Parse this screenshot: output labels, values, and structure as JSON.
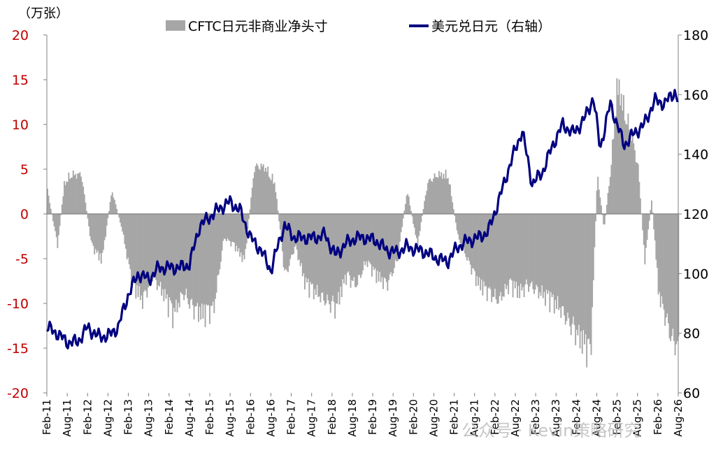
{
  "chart_data": {
    "type": "bar+line",
    "unit_left": "（万张）",
    "left_axis": {
      "ylim": [
        -20,
        20
      ],
      "ticks": [
        "20",
        "15",
        "10",
        "5",
        "0",
        "-5",
        "-10",
        "-15",
        "-20"
      ]
    },
    "right_axis": {
      "ylim": [
        60,
        180
      ],
      "ticks": [
        "180",
        "160",
        "140",
        "120",
        "100",
        "80",
        "60"
      ]
    },
    "x_tick_labels": [
      "Feb-11",
      "Aug-11",
      "Feb-12",
      "Aug-12",
      "Feb-13",
      "Aug-13",
      "Feb-14",
      "Aug-14",
      "Feb-15",
      "Aug-15",
      "Feb-16",
      "Aug-16",
      "Feb-17",
      "Aug-17",
      "Feb-18",
      "Aug-18",
      "Feb-19",
      "Aug-19",
      "Feb-20",
      "Aug-20",
      "Feb-21",
      "Aug-21",
      "Feb-22",
      "Aug-22",
      "Feb-23",
      "Aug-23",
      "Feb-24",
      "Aug-24",
      "Feb-25",
      "Aug-25",
      "Feb-26",
      "Aug-26"
    ],
    "legend": {
      "position": "top"
    },
    "series": [
      {
        "name": "CFTC日元非商业净头寸",
        "kind": "bar",
        "axis": "left",
        "color": "#a6a6a6",
        "dates": [
          "2011-02",
          "2011-05",
          "2011-07",
          "2011-09",
          "2011-12",
          "2012-03",
          "2012-06",
          "2012-09",
          "2012-12",
          "2013-03",
          "2013-06",
          "2013-09",
          "2013-12",
          "2014-03",
          "2014-06",
          "2014-09",
          "2014-12",
          "2015-03",
          "2015-06",
          "2015-09",
          "2015-12",
          "2016-03",
          "2016-06",
          "2016-09",
          "2016-12",
          "2017-03",
          "2017-06",
          "2017-09",
          "2017-12",
          "2018-03",
          "2018-06",
          "2018-09",
          "2018-12",
          "2019-03",
          "2019-06",
          "2019-09",
          "2019-12",
          "2020-03",
          "2020-06",
          "2020-09",
          "2020-12",
          "2021-03",
          "2021-06",
          "2021-09",
          "2021-12",
          "2022-03",
          "2022-06",
          "2022-09",
          "2022-12",
          "2023-03",
          "2023-06",
          "2023-09",
          "2023-12",
          "2024-03",
          "2024-06",
          "2024-08",
          "2024-10",
          "2024-12",
          "2025-02",
          "2025-04",
          "2025-06",
          "2025-08",
          "2025-10",
          "2025-12",
          "2026-02",
          "2026-04",
          "2026-06",
          "2026-08"
        ],
        "values": [
          3,
          -4,
          4,
          5,
          5,
          -4,
          -6,
          3,
          -2,
          -9,
          -11,
          -8,
          -10,
          -13,
          -10,
          -12,
          -13,
          -12,
          -3,
          -4,
          -6,
          6,
          6,
          4,
          -8,
          -4,
          -9,
          -10,
          -11,
          -12,
          -8,
          -9,
          -6,
          -8,
          -9,
          -6,
          3,
          -4,
          4,
          5,
          5,
          -3,
          -6,
          -9,
          -10,
          -11,
          -9,
          -10,
          -9,
          -10,
          -11,
          -12,
          -14,
          -16,
          -18,
          5,
          -2,
          6,
          17,
          13,
          10,
          6,
          -6,
          2,
          -10,
          -13,
          -16,
          -17
        ]
      },
      {
        "name": "美元兑日元（右轴）",
        "kind": "line",
        "axis": "right",
        "color": "#000080",
        "dates": [
          "2011-02",
          "2011-05",
          "2011-08",
          "2011-11",
          "2012-02",
          "2012-05",
          "2012-08",
          "2012-11",
          "2013-02",
          "2013-05",
          "2013-08",
          "2013-11",
          "2014-02",
          "2014-05",
          "2014-08",
          "2014-11",
          "2015-02",
          "2015-05",
          "2015-08",
          "2015-11",
          "2016-02",
          "2016-05",
          "2016-08",
          "2016-11",
          "2016-12",
          "2017-03",
          "2017-06",
          "2017-09",
          "2017-12",
          "2018-03",
          "2018-06",
          "2018-09",
          "2018-12",
          "2019-03",
          "2019-06",
          "2019-09",
          "2019-12",
          "2020-03",
          "2020-06",
          "2020-09",
          "2020-12",
          "2021-03",
          "2021-06",
          "2021-09",
          "2021-12",
          "2022-03",
          "2022-06",
          "2022-10",
          "2023-01",
          "2023-04",
          "2023-07",
          "2023-10",
          "2024-01",
          "2024-04",
          "2024-07",
          "2024-09",
          "2024-12",
          "2025-02",
          "2025-04",
          "2025-07",
          "2025-10",
          "2026-01",
          "2026-04",
          "2026-07",
          "2026-08"
        ],
        "values": [
          82,
          80,
          77,
          77,
          82,
          79,
          79,
          82,
          93,
          100,
          98,
          102,
          102,
          102,
          103,
          116,
          119,
          122,
          124,
          121,
          112,
          108,
          101,
          113,
          116,
          112,
          112,
          112,
          113,
          106,
          110,
          112,
          112,
          111,
          108,
          107,
          109,
          108,
          107,
          105,
          104,
          109,
          111,
          112,
          114,
          124,
          135,
          148,
          130,
          134,
          143,
          150,
          147,
          151,
          159,
          142,
          157,
          150,
          143,
          147,
          150,
          158,
          157,
          161,
          158
        ]
      }
    ]
  },
  "watermark": "公众号 · Kevin策略研究"
}
